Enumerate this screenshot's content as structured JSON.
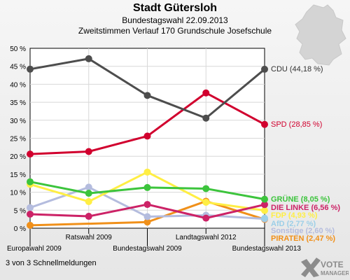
{
  "header": {
    "title": "Stadt Gütersloh",
    "subtitle": "Bundestagswahl 22.09.2013",
    "subtitle2": "Zweitstimmen Verlauf 170 Grundschule Josefschule"
  },
  "footer": {
    "text": "3 von 3 Schnellmeldungen"
  },
  "logo": {
    "line1": "VOTE",
    "line2": "MANAGER"
  },
  "chart_data": {
    "type": "line",
    "title": "Stadt Gütersloh",
    "categories": [
      "Europawahl 2009",
      "Ratswahl 2009",
      "Bundestagswahl 2009",
      "Landtagswahl 2012",
      "Bundestagswahl 2013"
    ],
    "ylim": [
      0,
      50
    ],
    "yticks": [
      "0 %",
      "5 %",
      "10 %",
      "15 %",
      "20 %",
      "25 %",
      "30 %",
      "35 %",
      "40 %",
      "45 %",
      "50 %"
    ],
    "grid": true,
    "legend": "right",
    "series": [
      {
        "name": "CDU",
        "label": "CDU (44,18 %)",
        "color": "#4d4d4d",
        "values": [
          44.2,
          47.1,
          36.9,
          30.6,
          44.18
        ]
      },
      {
        "name": "SPD",
        "label": "SPD (28,85 %)",
        "color": "#d1002e",
        "values": [
          20.6,
          21.3,
          25.6,
          37.6,
          28.85
        ]
      },
      {
        "name": "GRÜNE",
        "label": "GRÜNE (8,05 %)",
        "color": "#3cc43c",
        "values": [
          12.9,
          9.7,
          11.3,
          11.0,
          8.05
        ]
      },
      {
        "name": "DIE LINKE",
        "label": "DIE LINKE (6,56 %)",
        "color": "#cc2266",
        "values": [
          3.9,
          3.3,
          6.6,
          2.8,
          6.56
        ]
      },
      {
        "name": "FDP",
        "label": "FDP (4,93 %)",
        "color": "#ffee44",
        "values": [
          12.2,
          7.4,
          15.6,
          7.2,
          4.93
        ]
      },
      {
        "name": "AfD",
        "label": "AfD (2,77 %)",
        "color": "#9ccfe8",
        "values": [
          null,
          null,
          null,
          null,
          2.77
        ]
      },
      {
        "name": "Sonstige",
        "label": "Sonstige (2,60 %)",
        "color": "#b4bcde",
        "values": [
          5.7,
          11.4,
          3.2,
          3.6,
          2.6
        ]
      },
      {
        "name": "PIRATEN",
        "label": "PIRATEN (2,47 %)",
        "color": "#f0901a",
        "values": [
          0.8,
          null,
          1.7,
          7.5,
          2.47
        ]
      }
    ]
  }
}
